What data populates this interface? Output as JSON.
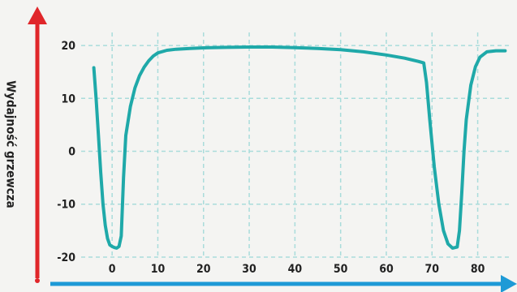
{
  "chart_data": {
    "type": "line",
    "title": "",
    "xlabel": "",
    "ylabel": "Wydajność grzewcza",
    "x_ticks": [
      0,
      10,
      20,
      30,
      40,
      50,
      60,
      70,
      80
    ],
    "y_ticks": [
      20,
      10,
      0,
      -10,
      -20
    ],
    "xlim": [
      -5,
      87
    ],
    "ylim": [
      -22,
      24
    ],
    "grid": true,
    "colors": {
      "line": "#1fa9a9",
      "y_axis": "#e0262a",
      "x_axis": "#1e9ad6",
      "grid": "#a9dcdb"
    },
    "series": [
      {
        "name": "",
        "points": [
          [
            -4,
            15.8
          ],
          [
            -3.5,
            10
          ],
          [
            -3,
            3
          ],
          [
            -2.5,
            -4
          ],
          [
            -2,
            -10
          ],
          [
            -1.5,
            -14
          ],
          [
            -1,
            -16.5
          ],
          [
            -0.5,
            -17.7
          ],
          [
            0,
            -18
          ],
          [
            0.5,
            -18.2
          ],
          [
            1,
            -18.3
          ],
          [
            1.5,
            -18
          ],
          [
            2,
            -16
          ],
          [
            2.5,
            -5
          ],
          [
            3,
            3
          ],
          [
            4,
            8.5
          ],
          [
            5,
            12
          ],
          [
            6,
            14.3
          ],
          [
            7,
            15.9
          ],
          [
            8,
            17.1
          ],
          [
            9,
            18
          ],
          [
            10,
            18.6
          ],
          [
            12,
            19.1
          ],
          [
            14,
            19.3
          ],
          [
            17,
            19.45
          ],
          [
            20,
            19.55
          ],
          [
            25,
            19.65
          ],
          [
            30,
            19.7
          ],
          [
            35,
            19.7
          ],
          [
            40,
            19.6
          ],
          [
            45,
            19.45
          ],
          [
            50,
            19.2
          ],
          [
            55,
            18.8
          ],
          [
            60,
            18.2
          ],
          [
            64,
            17.6
          ],
          [
            67,
            17
          ],
          [
            68.2,
            16.7
          ],
          [
            68.8,
            13
          ],
          [
            69.5,
            6
          ],
          [
            70.5,
            -3
          ],
          [
            71.5,
            -10
          ],
          [
            72.5,
            -15
          ],
          [
            73.5,
            -17.5
          ],
          [
            74.5,
            -18.3
          ],
          [
            75.5,
            -18.1
          ],
          [
            76,
            -15
          ],
          [
            76.5,
            -8
          ],
          [
            77,
            0
          ],
          [
            77.5,
            6
          ],
          [
            78.5,
            12.5
          ],
          [
            79.5,
            16
          ],
          [
            80.5,
            17.8
          ],
          [
            82,
            18.8
          ],
          [
            84,
            19
          ],
          [
            86,
            19
          ]
        ]
      }
    ]
  }
}
